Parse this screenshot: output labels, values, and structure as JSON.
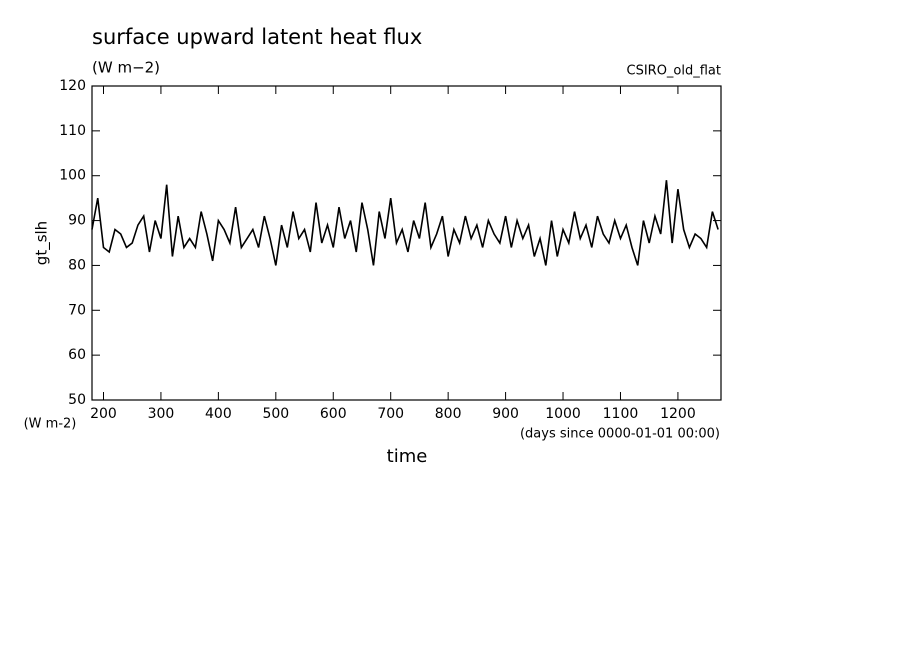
{
  "chart_data": {
    "type": "line",
    "title": "surface upward latent heat flux",
    "subtitle": "(W m−2)",
    "dataset": "CSIRO_old_flat",
    "y_label": "gt_slh",
    "y_units": "(W m-2)",
    "x_label": "time",
    "x_units": "(days since 0000-01-01 00:00)",
    "color": "#000000",
    "x": [
      180,
      190,
      200,
      210,
      220,
      230,
      240,
      250,
      260,
      270,
      280,
      290,
      300,
      310,
      320,
      330,
      340,
      350,
      360,
      370,
      380,
      390,
      400,
      410,
      420,
      430,
      440,
      450,
      460,
      470,
      480,
      490,
      500,
      510,
      520,
      530,
      540,
      550,
      560,
      570,
      580,
      590,
      600,
      610,
      620,
      630,
      640,
      650,
      660,
      670,
      680,
      690,
      700,
      710,
      720,
      730,
      740,
      750,
      760,
      770,
      780,
      790,
      800,
      810,
      820,
      830,
      840,
      850,
      860,
      870,
      880,
      890,
      900,
      910,
      920,
      930,
      940,
      950,
      960,
      970,
      980,
      990,
      1000,
      1010,
      1020,
      1030,
      1040,
      1050,
      1060,
      1070,
      1080,
      1090,
      1100,
      1110,
      1120,
      1130,
      1140,
      1150,
      1160,
      1170,
      1180,
      1190,
      1200,
      1210,
      1220,
      1230,
      1240,
      1250,
      1260,
      1270
    ],
    "values": [
      88,
      95,
      84,
      83,
      88,
      87,
      84,
      85,
      89,
      91,
      83,
      90,
      86,
      98,
      82,
      91,
      84,
      86,
      84,
      92,
      87,
      81,
      90,
      88,
      85,
      93,
      84,
      86,
      88,
      84,
      91,
      86,
      80,
      89,
      84,
      92,
      86,
      88,
      83,
      94,
      85,
      89,
      84,
      93,
      86,
      90,
      83,
      94,
      88,
      80,
      92,
      86,
      95,
      85,
      88,
      83,
      90,
      86,
      94,
      84,
      87,
      91,
      82,
      88,
      85,
      91,
      86,
      89,
      84,
      90,
      87,
      85,
      91,
      84,
      90,
      86,
      89,
      82,
      86,
      80,
      90,
      82,
      88,
      85,
      92,
      86,
      89,
      84,
      91,
      87,
      85,
      90,
      86,
      89,
      84,
      80,
      90,
      85,
      91,
      87,
      99,
      85,
      97,
      88,
      84,
      87,
      86,
      84,
      92,
      88
    ],
    "xlim": [
      180,
      1275
    ],
    "ylim": [
      50,
      120
    ],
    "xticks": [
      200,
      300,
      400,
      500,
      600,
      700,
      800,
      900,
      1000,
      1100,
      1200
    ],
    "yticks": [
      50,
      60,
      70,
      80,
      90,
      100,
      110,
      120
    ]
  }
}
